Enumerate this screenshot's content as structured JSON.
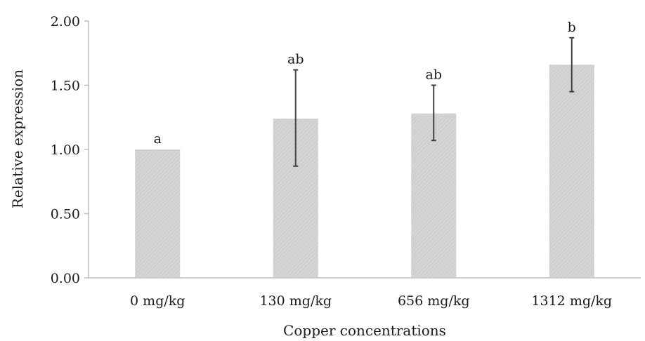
{
  "chart_data": {
    "type": "bar",
    "title": "",
    "xlabel": "Copper concentrations",
    "ylabel": "Relative expression",
    "categories": [
      "0 mg/kg",
      "130 mg/kg",
      "656 mg/kg",
      "1312 mg/kg"
    ],
    "values": [
      1.0,
      1.24,
      1.28,
      1.66
    ],
    "error_low": [
      1.0,
      0.87,
      1.07,
      1.45
    ],
    "error_high": [
      1.0,
      1.62,
      1.5,
      1.87
    ],
    "significance_labels": [
      "a",
      "ab",
      "ab",
      "b"
    ],
    "ylim": [
      0,
      2
    ],
    "yticks": [
      "0.00",
      "0.50",
      "1.00",
      "1.50",
      "2.00"
    ],
    "ytick_values": [
      0,
      0.5,
      1,
      1.5,
      2
    ],
    "grid": false,
    "legend": "none",
    "colors": {
      "bar_fill": "#d4d4d4",
      "bar_hatch": "#c2c2c2",
      "error_bar": "#404040",
      "axis": "#bdbdbd"
    }
  }
}
